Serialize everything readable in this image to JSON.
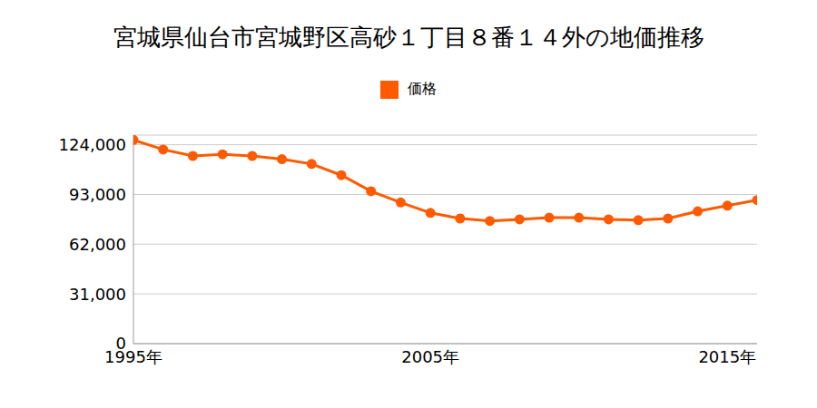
{
  "chart_data": {
    "type": "line",
    "title": "宮城県仙台市宮城野区高砂１丁目８番１４外の地価推移",
    "x": [
      1995,
      1996,
      1997,
      1998,
      1999,
      2000,
      2001,
      2002,
      2003,
      2004,
      2005,
      2006,
      2007,
      2008,
      2009,
      2010,
      2011,
      2012,
      2013,
      2014,
      2015,
      2016
    ],
    "series": [
      {
        "name": "価格",
        "color": "#ff5a00",
        "marker": "circle",
        "values": [
          127000,
          121000,
          117000,
          118000,
          117000,
          115000,
          112000,
          105000,
          95000,
          88000,
          81500,
          78000,
          76500,
          77500,
          78500,
          78500,
          77500,
          77000,
          78000,
          82500,
          86000,
          89500
        ]
      }
    ],
    "xlim": [
      1995,
      2016
    ],
    "xticks": [
      {
        "value": 1995,
        "label": "1995年"
      },
      {
        "value": 2005,
        "label": "2005年"
      },
      {
        "value": 2015,
        "label": "2015年"
      }
    ],
    "ylim": [
      0,
      130000
    ],
    "yticks": [
      0,
      {
        "value": 31000,
        "label": "31,000"
      },
      {
        "value": 62000,
        "label": "62,000"
      },
      {
        "value": 93000,
        "label": "93,000"
      },
      {
        "value": 124000,
        "label": "124,000"
      }
    ],
    "grid": true,
    "legend": "top"
  }
}
